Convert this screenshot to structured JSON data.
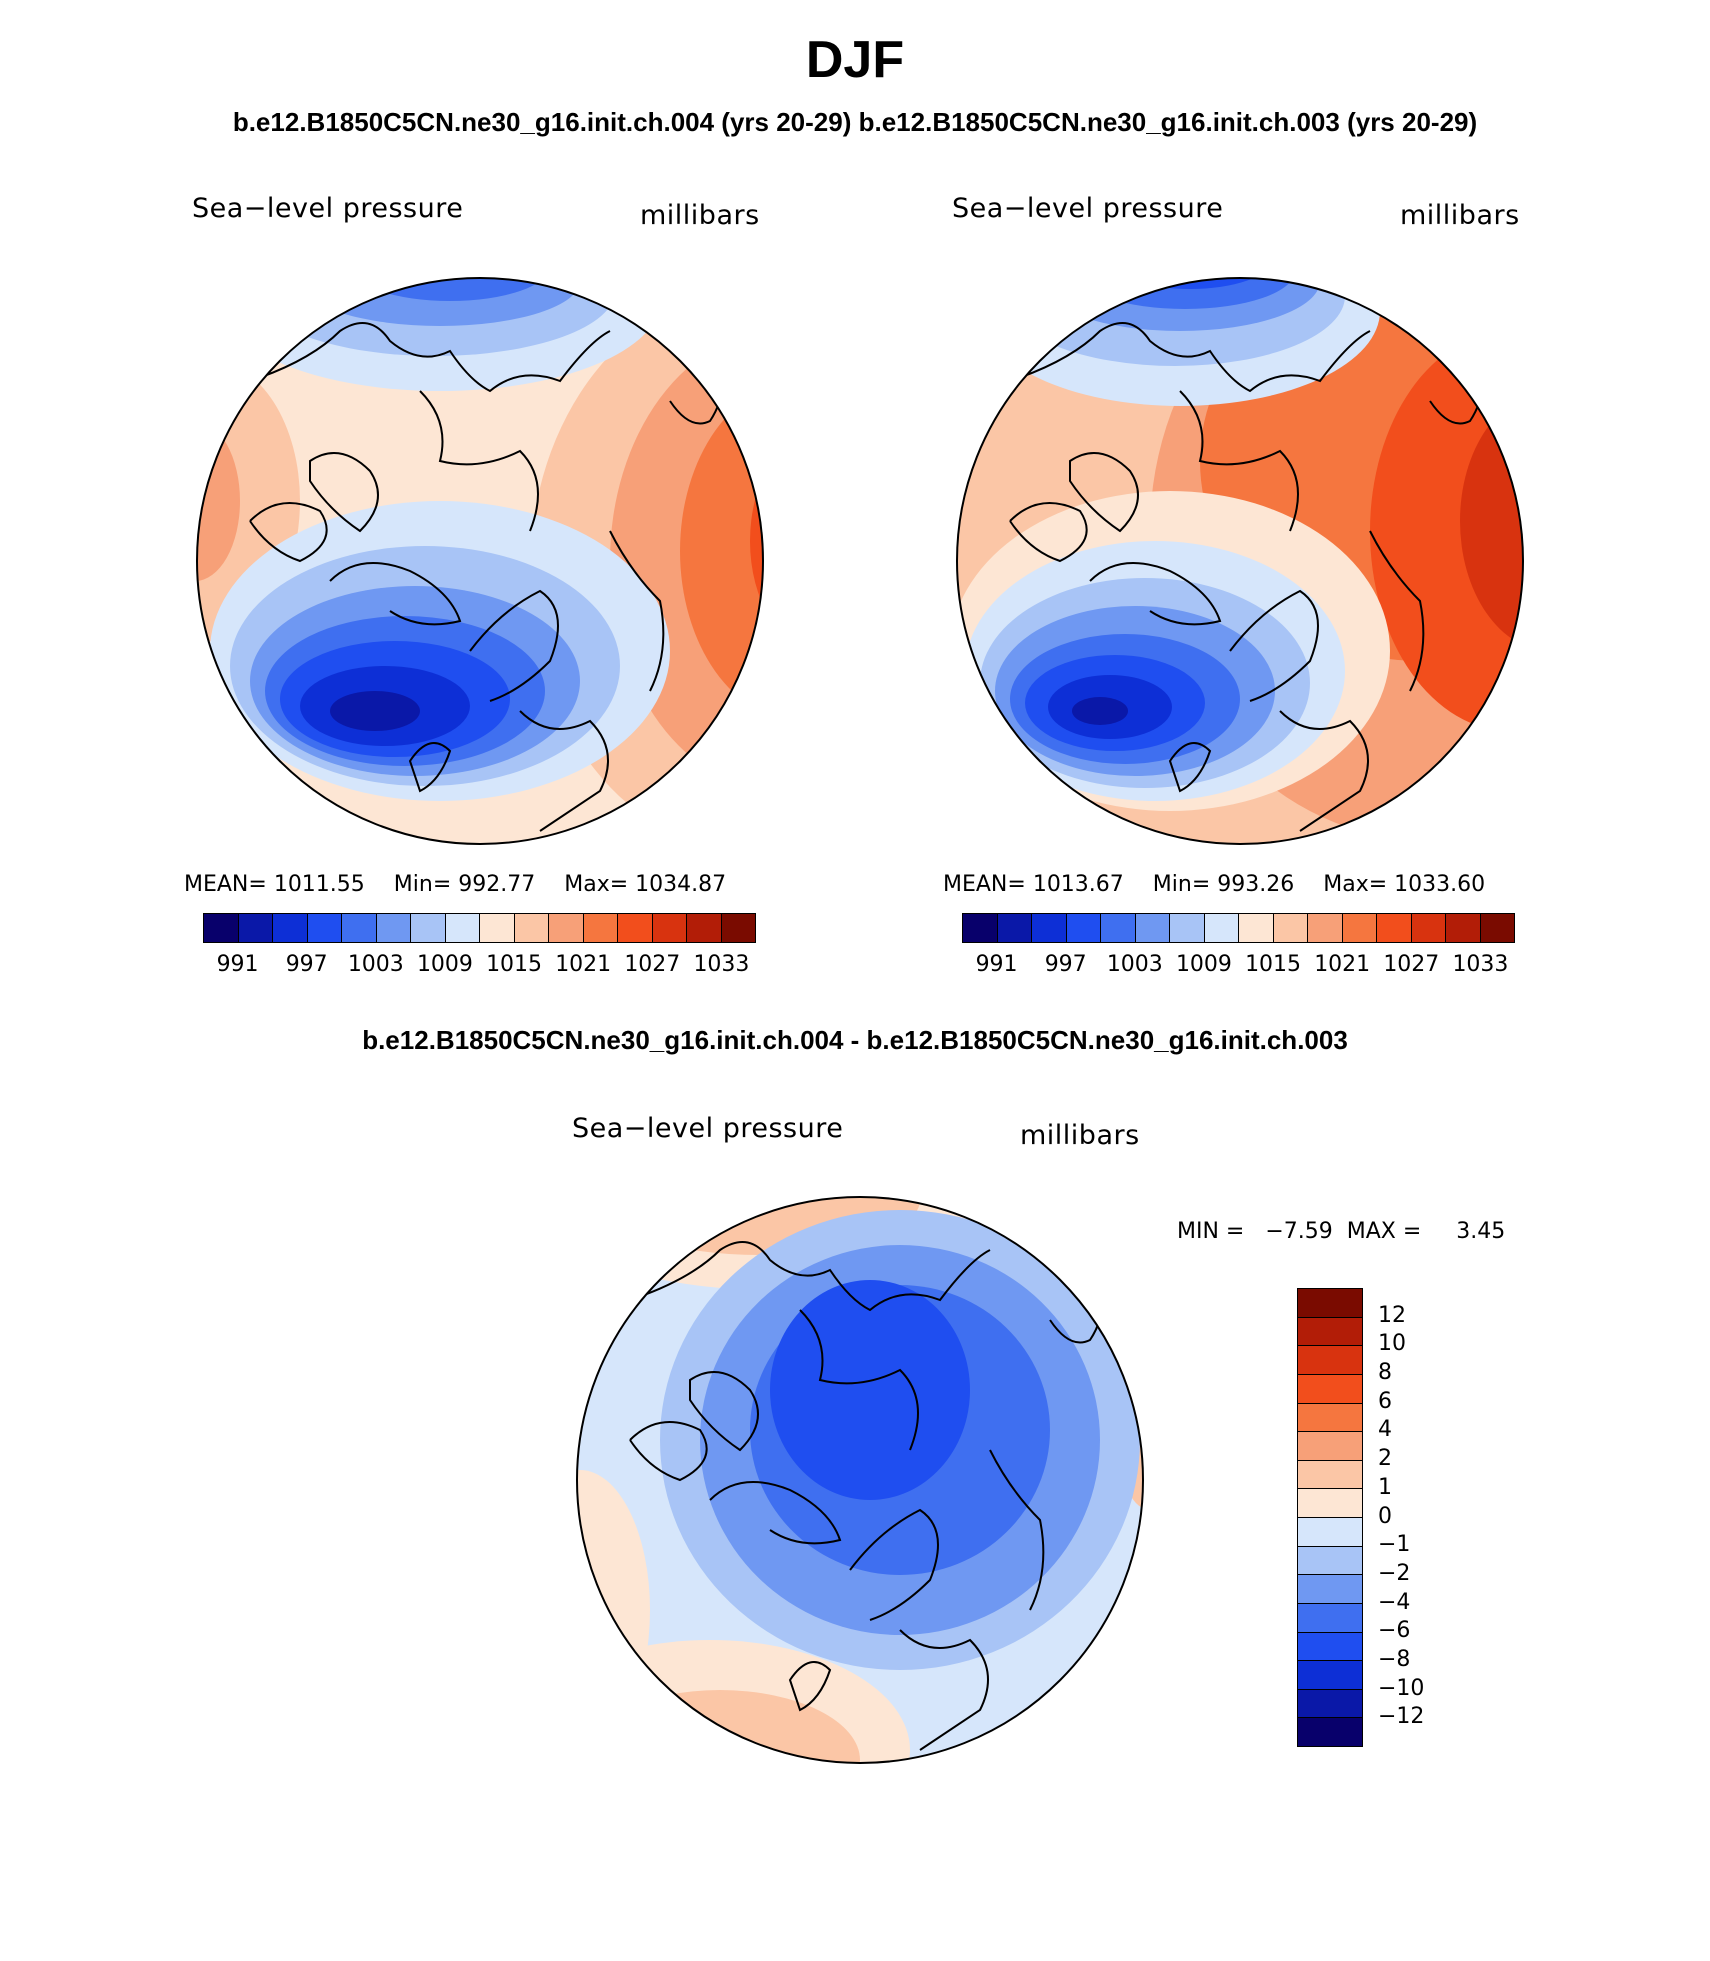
{
  "title": "DJF",
  "run_title_left": "b.e12.B1850C5CN.ne30_g16.init.ch.004 (yrs 20-29)",
  "run_title_right": "b.e12.B1850C5CN.ne30_g16.init.ch.003 (yrs 20-29)",
  "diff_title": "b.e12.B1850C5CN.ne30_g16.init.ch.004 - b.e12.B1850C5CN.ne30_g16.init.ch.003",
  "panels": [
    {
      "variable": "Sea−level pressure",
      "units": "millibars",
      "mean_label": "MEAN= 1011.55",
      "min_label": "Min= 992.77",
      "max_label": "Max= 1034.87",
      "ticks": [
        "991",
        "997",
        "1003",
        "1009",
        "1015",
        "1021",
        "1027",
        "1033"
      ]
    },
    {
      "variable": "Sea−level pressure",
      "units": "millibars",
      "mean_label": "MEAN= 1013.67",
      "min_label": "Min= 993.26",
      "max_label": "Max= 1033.60",
      "ticks": [
        "991",
        "997",
        "1003",
        "1009",
        "1015",
        "1021",
        "1027",
        "1033"
      ]
    }
  ],
  "diff_panel": {
    "variable": "Sea−level pressure",
    "units": "millibars",
    "minmax_label": "MIN =   −7.59  MAX =     3.45",
    "ticks": [
      "12",
      "10",
      "8",
      "6",
      "4",
      "2",
      "1",
      "0",
      "−1",
      "−2",
      "−4",
      "−6",
      "−8",
      "−10",
      "−12"
    ]
  },
  "colors": {
    "abs_scale": [
      "#08006b",
      "#0a18a8",
      "#0d2fd6",
      "#1f4ef0",
      "#3f6ff0",
      "#6f98f2",
      "#a8c4f6",
      "#d6e6fb",
      "#fde6d4",
      "#fbc6a6",
      "#f7a078",
      "#f5763f",
      "#f24e1c",
      "#d8330f",
      "#b21d07",
      "#7a0b00"
    ],
    "diff_scale": [
      "#7a0b00",
      "#b21d07",
      "#d8330f",
      "#f24e1c",
      "#f5763f",
      "#f7a078",
      "#fbc6a6",
      "#fde6d4",
      "#d6e6fb",
      "#a8c4f6",
      "#6f98f2",
      "#3f6ff0",
      "#1f4ef0",
      "#0d2fd6",
      "#0a18a8",
      "#08006b"
    ]
  }
}
